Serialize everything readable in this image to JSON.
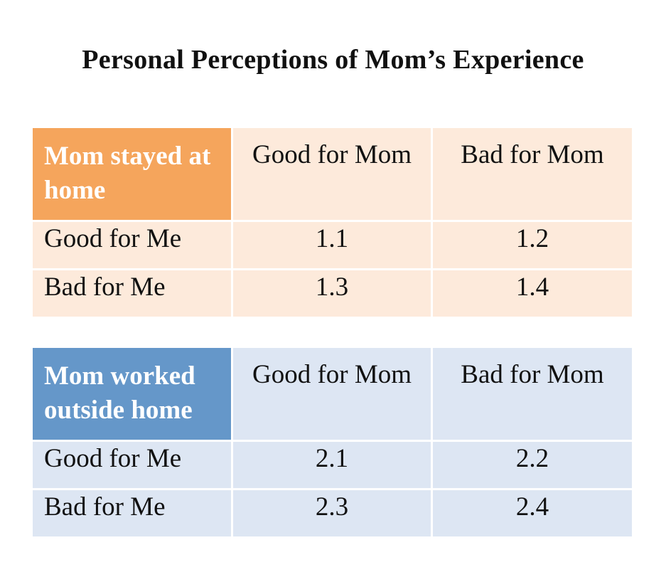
{
  "title": "Personal Perceptions of Mom’s Experience",
  "theme_colors": {
    "table1_header": "#f5a55c",
    "table1_cell": "#fdeadb",
    "table2_header": "#6597c9",
    "table2_cell": "#dde6f3"
  },
  "tables": [
    {
      "corner_label": "Mom stayed at home",
      "columns": [
        "Good for Mom",
        "Bad for Mom"
      ],
      "rows": [
        {
          "label": "Good for Me",
          "values": [
            "1.1",
            "1.2"
          ]
        },
        {
          "label": "Bad for Me",
          "values": [
            "1.3",
            "1.4"
          ]
        }
      ]
    },
    {
      "corner_label": "Mom worked outside home",
      "columns": [
        "Good for Mom",
        "Bad for Mom"
      ],
      "rows": [
        {
          "label": "Good for Me",
          "values": [
            "2.1",
            "2.2"
          ]
        },
        {
          "label": "Bad for Me",
          "values": [
            "2.3",
            "2.4"
          ]
        }
      ]
    }
  ]
}
